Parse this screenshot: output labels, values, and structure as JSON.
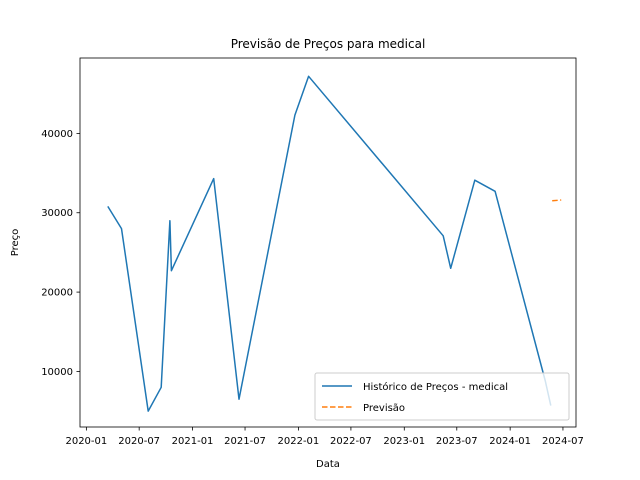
{
  "chart_data": {
    "type": "line",
    "title": "Previsão de Preços para medical",
    "xlabel": "Data",
    "ylabel": "Preço",
    "x_ticks": [
      "2020-01",
      "2020-07",
      "2021-01",
      "2021-07",
      "2022-01",
      "2022-07",
      "2023-01",
      "2023-07",
      "2024-01",
      "2024-07"
    ],
    "y_ticks": [
      10000,
      20000,
      30000,
      40000
    ],
    "xlim": [
      "2019-12-10",
      "2024-08-15"
    ],
    "ylim": [
      3000,
      49500
    ],
    "grid": false,
    "legend_position": "lower right",
    "series": [
      {
        "name": "Histórico de Preços - medical",
        "color": "#1f77b4",
        "style": "solid",
        "points": [
          [
            "2020-03-15",
            30800
          ],
          [
            "2020-05-01",
            28000
          ],
          [
            "2020-08-01",
            5000
          ],
          [
            "2020-09-15",
            8000
          ],
          [
            "2020-10-15",
            29000
          ],
          [
            "2020-10-20",
            22700
          ],
          [
            "2021-03-15",
            34300
          ],
          [
            "2021-06-10",
            6500
          ],
          [
            "2021-12-20",
            42300
          ],
          [
            "2022-02-05",
            47200
          ],
          [
            "2023-05-15",
            27100
          ],
          [
            "2023-06-10",
            23000
          ],
          [
            "2023-09-01",
            34100
          ],
          [
            "2023-11-10",
            32700
          ],
          [
            "2024-05-01",
            8800
          ],
          [
            "2024-05-20",
            5700
          ]
        ]
      },
      {
        "name": "Previsão",
        "color": "#ff7f0e",
        "style": "dashed",
        "points": [
          [
            "2024-05-25",
            31500
          ],
          [
            "2024-06-25",
            31600
          ]
        ]
      }
    ]
  }
}
